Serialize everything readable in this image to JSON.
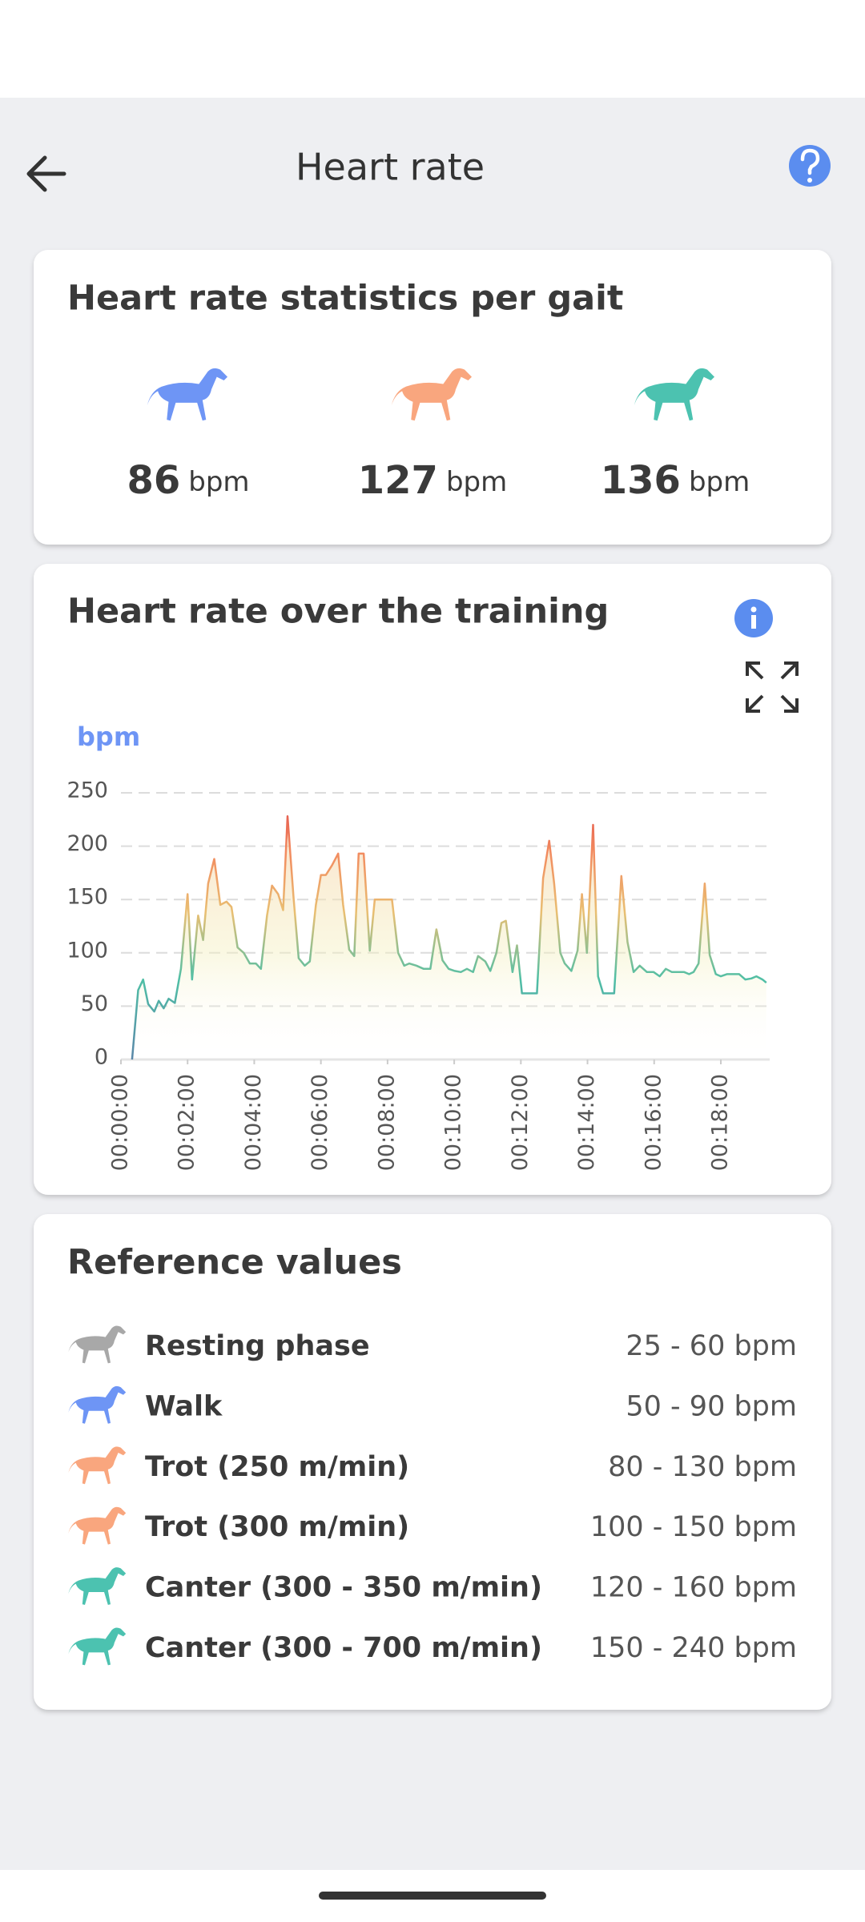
{
  "header": {
    "title": "Heart rate"
  },
  "gait_stats": {
    "title": "Heart rate statistics per gait",
    "items": [
      {
        "value": 86,
        "unit": "bpm"
      },
      {
        "value": 127,
        "unit": "bpm"
      },
      {
        "value": 136,
        "unit": "bpm"
      }
    ]
  },
  "chart_data": {
    "type": "line",
    "title": "Heart rate over the training",
    "ylabel": "bpm",
    "x": [
      20,
      31,
      40,
      49,
      60,
      68,
      77,
      86,
      97,
      108,
      120,
      128,
      139,
      148,
      157,
      168,
      179,
      190,
      199,
      210,
      221,
      232,
      243,
      252,
      263,
      272,
      283,
      292,
      300,
      311,
      320,
      331,
      340,
      351,
      360,
      369,
      380,
      391,
      400,
      411,
      420,
      428,
      437,
      448,
      457,
      468,
      479,
      488,
      499,
      510,
      519,
      532,
      545,
      557,
      568,
      579,
      590,
      601,
      612,
      623,
      634,
      643,
      656,
      665,
      676,
      685,
      693,
      705,
      713,
      722,
      731,
      740,
      749,
      760,
      771,
      780,
      791,
      799,
      811,
      822,
      830,
      839,
      850,
      859,
      868,
      877,
      888,
      901,
      912,
      923,
      934,
      947,
      959,
      970,
      981,
      992,
      1003,
      1014,
      1023,
      1031,
      1040,
      1051,
      1060,
      1071,
      1080,
      1091,
      1102,
      1113,
      1124,
      1135,
      1144,
      1155,
      1162
    ],
    "values": [
      0,
      65,
      75,
      52,
      45,
      55,
      48,
      57,
      53,
      85,
      155,
      75,
      135,
      112,
      165,
      188,
      145,
      148,
      143,
      105,
      100,
      90,
      90,
      85,
      135,
      163,
      155,
      140,
      228,
      150,
      95,
      88,
      92,
      145,
      173,
      173,
      182,
      193,
      145,
      103,
      97,
      193,
      193,
      102,
      150,
      150,
      150,
      150,
      100,
      88,
      90,
      88,
      85,
      85,
      122,
      93,
      85,
      83,
      82,
      85,
      82,
      97,
      92,
      83,
      100,
      128,
      130,
      82,
      107,
      62,
      62,
      62,
      62,
      170,
      205,
      165,
      100,
      90,
      83,
      102,
      155,
      100,
      220,
      78,
      62,
      62,
      62,
      172,
      110,
      82,
      88,
      82,
      82,
      78,
      85,
      82,
      82,
      82,
      80,
      82,
      90,
      165,
      98,
      80,
      78,
      80,
      80,
      80,
      75,
      76,
      78,
      75,
      72
    ],
    "xlim": [
      0,
      1168
    ],
    "ylim": [
      0,
      250
    ],
    "yticks": [
      0,
      50,
      100,
      150,
      200,
      250
    ],
    "xticks": [
      {
        "value": 0,
        "label": "00:00:00"
      },
      {
        "value": 120,
        "label": "00:02:00"
      },
      {
        "value": 240,
        "label": "00:04:00"
      },
      {
        "value": 360,
        "label": "00:06:00"
      },
      {
        "value": 480,
        "label": "00:08:00"
      },
      {
        "value": 600,
        "label": "00:10:00"
      },
      {
        "value": 720,
        "label": "00:12:00"
      },
      {
        "value": 840,
        "label": "00:14:00"
      },
      {
        "value": 960,
        "label": "00:16:00"
      },
      {
        "value": 1080,
        "label": "00:18:00"
      }
    ],
    "grid": true
  },
  "reference": {
    "title": "Reference values",
    "rows": [
      {
        "label": "Resting phase",
        "range": "25 - 60 bpm"
      },
      {
        "label": "Walk",
        "range": "50 - 90 bpm"
      },
      {
        "label": "Trot (250 m/min)",
        "range": "80 - 130 bpm"
      },
      {
        "label": "Trot (300 m/min)",
        "range": "100 - 150 bpm"
      },
      {
        "label": "Canter (300 - 350 m/min)",
        "range": "120 - 160 bpm"
      },
      {
        "label": "Canter (300 - 700 m/min)",
        "range": "150 - 240 bpm"
      }
    ]
  }
}
